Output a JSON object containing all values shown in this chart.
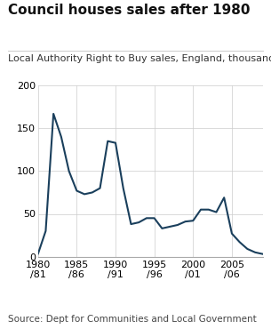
{
  "title": "Council houses sales after 1980",
  "subtitle": "Local Authority Right to Buy sales, England, thousands",
  "source": "Source: Dept for Communities and Local Government",
  "line_color": "#1a3f5c",
  "line_width": 1.5,
  "background_color": "#ffffff",
  "grid_color": "#cccccc",
  "years": [
    1980,
    1981,
    1982,
    1983,
    1984,
    1985,
    1986,
    1987,
    1988,
    1989,
    1990,
    1991,
    1992,
    1993,
    1994,
    1995,
    1996,
    1997,
    1998,
    1999,
    2000,
    2001,
    2002,
    2003,
    2004,
    2005,
    2006,
    2007,
    2008,
    2009
  ],
  "values": [
    3,
    30,
    167,
    140,
    100,
    77,
    73,
    75,
    80,
    135,
    133,
    80,
    38,
    40,
    45,
    45,
    33,
    35,
    37,
    41,
    42,
    55,
    55,
    52,
    69,
    27,
    17,
    9,
    5,
    3
  ],
  "xtick_positions": [
    1980,
    1985,
    1990,
    1995,
    2000,
    2005
  ],
  "xtick_labels": [
    "1980\n/81",
    "1985\n/86",
    "1990\n/91",
    "1995\n/96",
    "2000\n/01",
    "2005\n/06"
  ],
  "ytick_positions": [
    0,
    50,
    100,
    150,
    200
  ],
  "ylim": [
    0,
    200
  ],
  "xlim": [
    1980,
    2009
  ],
  "title_fontsize": 11,
  "subtitle_fontsize": 8,
  "tick_fontsize": 8,
  "source_fontsize": 7.5
}
